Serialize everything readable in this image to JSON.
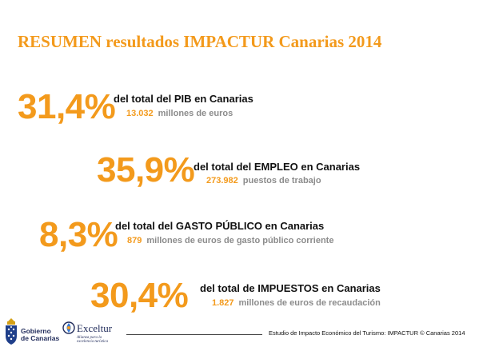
{
  "title": "RESUMEN resultados IMPACTUR Canarias 2014",
  "stats": [
    {
      "percent": "31,4%",
      "description": "del total del PIB en Canarias",
      "value": "13.032",
      "unit": "millones de euros"
    },
    {
      "percent": "35,9%",
      "description": "del total del EMPLEO en Canarias",
      "value": "273.982",
      "unit": "puestos de trabajo"
    },
    {
      "percent": "8,3%",
      "description": "del total del GASTO PÚBLICO en Canarias",
      "value": "879",
      "unit": "millones de euros de gasto público corriente"
    },
    {
      "percent": "30,4%",
      "description": "del total de IMPUESTOS en Canarias",
      "value": "1.827",
      "unit": "millones de euros de recaudación"
    }
  ],
  "footer": {
    "source": "Estudio de Impacto Económico del Turismo: IMPACTUR © Canarias 2014",
    "logo_gobierno_line1": "Gobierno",
    "logo_gobierno_line2": "de Canarias",
    "logo_exceltur_name": "Exceltur",
    "logo_exceltur_tagline": "Alianza para la excelencia turística"
  },
  "colors": {
    "accent": "#f39a1c",
    "text": "#111111",
    "muted": "#8c8c8c",
    "logo": "#1f2a5a"
  }
}
